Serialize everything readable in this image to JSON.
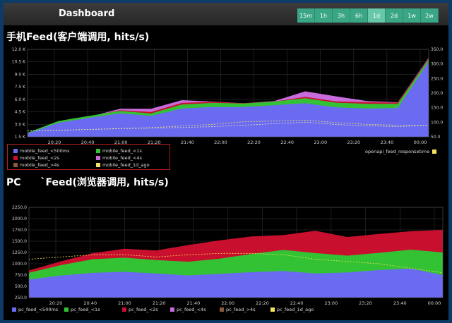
{
  "header": {
    "title": "Dashboard",
    "time_buttons": [
      "15m",
      "1h",
      "3h",
      "6h",
      "1d",
      "2d",
      "1w",
      "2w"
    ],
    "active_button": "1d"
  },
  "panel1": {
    "title": "手机Feed(客户端调用, hits/s)",
    "legend": [
      "mobile_feed_<500ms",
      "mobile_feed_<1s",
      "mobile_feed_<2s",
      "mobile_feed_<4s",
      "mobile_feed_>4s",
      "mobile_feed_1d_ago"
    ],
    "right_legend": "openapi_feed_responsetime"
  },
  "panel2": {
    "title_a": "PC",
    "title_b": "`Feed(浏览器调用, hits/s)",
    "legend": [
      "pc_feed_<500ms",
      "pc_feed_<1s",
      "pc_feed_<2s",
      "pc_feed_<4s",
      "pc_feed_>4s",
      "pc_feed_1d_ago"
    ]
  },
  "colors": {
    "lt500": "#6b6bf2",
    "lt1s": "#33c233",
    "lt2s": "#c8102e",
    "lt4s": "#c86bdc",
    "gt4s": "#8a5a3a",
    "ago": "#f5e35c"
  },
  "chart_data": [
    {
      "type": "area",
      "x": [
        "20:00",
        "20:20",
        "20:40",
        "21:00",
        "21:20",
        "21:40",
        "22:00",
        "22:20",
        "22:40",
        "23:00",
        "23:20",
        "23:40",
        "00:00",
        "00:10"
      ],
      "x_ticks": [
        "20:20",
        "20:40",
        "21:00",
        "21:20",
        "21:40",
        "22:00",
        "22:20",
        "22:40",
        "23:00",
        "23:20",
        "23:40",
        "00:00"
      ],
      "y_ticks": [
        "1.5 K",
        "3.0 K",
        "4.5 K",
        "6.0 K",
        "7.5 K",
        "9.0 K",
        "10.5 K",
        "12.0 K"
      ],
      "y2_ticks": [
        "50.0",
        "100.0",
        "150.0",
        "200.0",
        "250.0",
        "300.0",
        "350.0"
      ],
      "ylim": [
        1500,
        12000
      ],
      "y2lim": [
        50,
        350
      ],
      "series": [
        {
          "name": "mobile_feed_<500ms",
          "values": [
            1900,
            3100,
            3700,
            4300,
            4100,
            5000,
            5100,
            5000,
            5200,
            5500,
            5100,
            5000,
            5000,
            10500
          ]
        },
        {
          "name": "mobile_feed_<1s",
          "values": [
            2000,
            3300,
            4000,
            4700,
            4400,
            5400,
            5500,
            5400,
            5700,
            6200,
            5700,
            5500,
            5400,
            10800
          ]
        },
        {
          "name": "mobile_feed_<2s",
          "values": [
            2000,
            3300,
            4000,
            4800,
            4500,
            5500,
            5600,
            5500,
            5800,
            6400,
            5800,
            5600,
            5500,
            10900
          ]
        },
        {
          "name": "mobile_feed_<4s",
          "values": [
            2000,
            3300,
            4000,
            4900,
            4800,
            5800,
            5700,
            5600,
            5900,
            7000,
            6300,
            5700,
            5600,
            11000
          ]
        },
        {
          "name": "mobile_feed_1d_ago",
          "values": [
            2200,
            2300,
            2400,
            2500,
            2600,
            2800,
            3000,
            3300,
            3400,
            3500,
            3200,
            3000,
            2900,
            2900
          ]
        },
        {
          "name": "openapi_feed_responsetime",
          "values": [
            70,
            72,
            75,
            78,
            80,
            82,
            85,
            90,
            95,
            100,
            92,
            88,
            85,
            90
          ]
        }
      ]
    },
    {
      "type": "area",
      "x": [
        "20:00",
        "20:20",
        "20:40",
        "21:00",
        "21:20",
        "21:40",
        "22:00",
        "22:20",
        "22:40",
        "23:00",
        "23:20",
        "23:40",
        "00:00",
        "00:10"
      ],
      "x_ticks": [
        "20:20",
        "20:40",
        "21:00",
        "21:20",
        "21:40",
        "22:00",
        "22:20",
        "22:40",
        "23:00",
        "23:20",
        "23:40",
        "00:00"
      ],
      "y_ticks": [
        "250.0",
        "500.0",
        "750.0",
        "1000.0",
        "1250.0",
        "1500.0",
        "1750.0",
        "2000.0",
        "2250.0"
      ],
      "ylim": [
        250,
        2250
      ],
      "series": [
        {
          "name": "pc_feed_<500ms",
          "values": [
            650,
            720,
            780,
            820,
            800,
            760,
            780,
            800,
            820,
            780,
            820,
            880,
            900,
            750
          ]
        },
        {
          "name": "pc_feed_<1s",
          "values": [
            800,
            950,
            1100,
            1150,
            1100,
            1050,
            1100,
            1200,
            1300,
            1250,
            1200,
            1250,
            1300,
            1250
          ]
        },
        {
          "name": "pc_feed_<2s",
          "values": [
            850,
            1050,
            1250,
            1350,
            1300,
            1400,
            1500,
            1600,
            1650,
            1750,
            1600,
            1650,
            1700,
            1750
          ]
        },
        {
          "name": "pc_feed_1d_ago",
          "values": [
            1100,
            1150,
            1200,
            1200,
            1150,
            1200,
            1230,
            1230,
            1200,
            1100,
            1050,
            1000,
            900,
            800
          ]
        }
      ]
    }
  ]
}
